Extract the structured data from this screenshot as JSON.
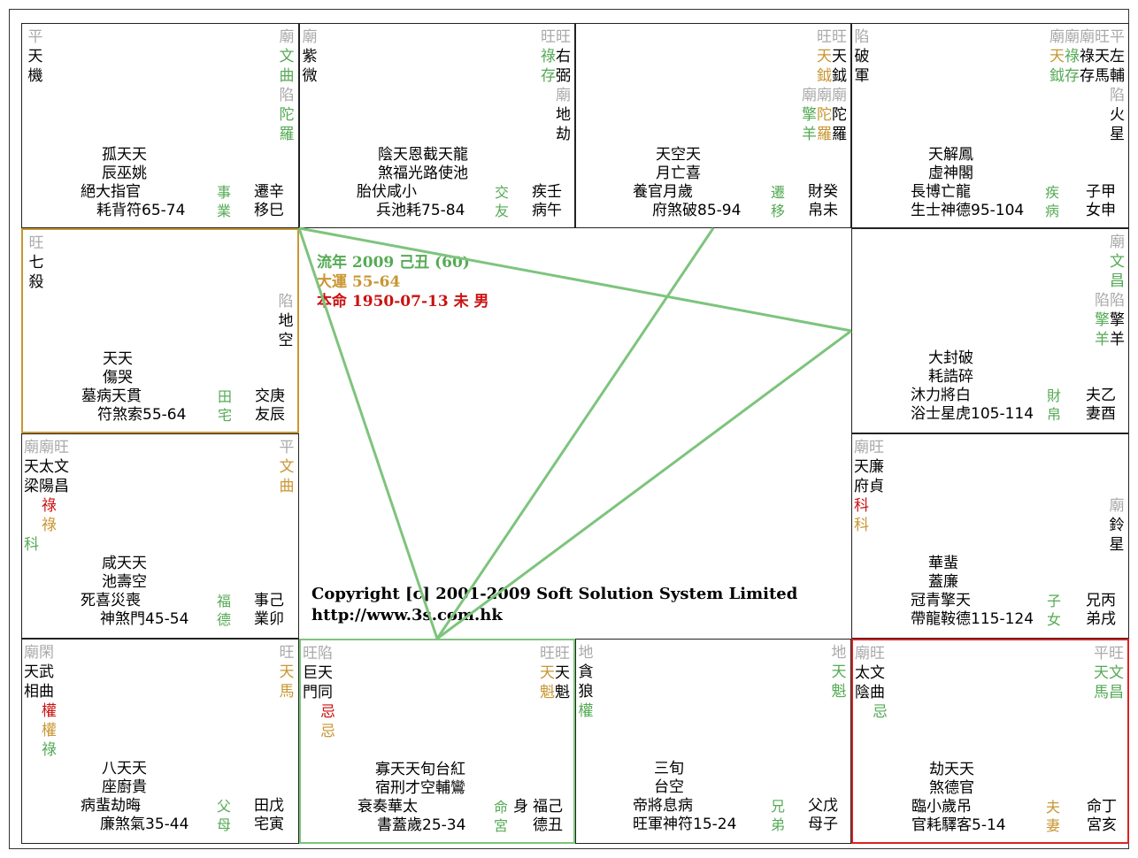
{
  "center": {
    "liunian": "流年 2009 己丑 (60)",
    "dayun": "大運 55-64",
    "benming": "本命  1950-07-13 未 男",
    "copyright": "Copyright [c] 2001-2009 Soft Solution System Limited",
    "url": "http://www.3s.com.hk"
  },
  "colors": {
    "green": "#7dc47d",
    "gold": "#c89632",
    "red": "#dd2222"
  },
  "cells": {
    "si": {
      "right_cols": [
        [
          "廟",
          "文",
          "曲",
          "陷",
          "陀",
          "羅"
        ]
      ],
      "left_cols": [
        [
          "平",
          "天",
          "機"
        ]
      ],
      "minor": [
        "孤天天",
        "辰巫姚",
        "絕大指官",
        "耗背符65-74"
      ],
      "palace_col": [
        "事",
        "業"
      ],
      "palace_color": "#55aa55",
      "gz": [
        "遷辛",
        "移巳"
      ]
    },
    "wu": {
      "left_cols": [
        [
          "廟",
          "紫",
          "微"
        ]
      ],
      "right_cols": [
        [
          "旺旺",
          "祿右",
          "存弼",
          "廟",
          "地",
          "劫"
        ]
      ],
      "minor": [
        "陰天恩截天龍",
        "煞福光路使池",
        "胎伏咸小",
        "兵池耗75-84"
      ],
      "palace_col": [
        "交",
        "友"
      ],
      "palace_color": "#55aa55",
      "gz": [
        "疾壬",
        "病午"
      ]
    },
    "wei": {
      "right_cols": [
        [
          "旺旺",
          "天天",
          "鉞鉞",
          "廟廟廟",
          "擎陀陀",
          "羊羅羅"
        ]
      ],
      "minor": [
        "天空天",
        "月亡喜",
        "養官月歲",
        "府煞破85-94"
      ],
      "palace_col": [
        "遷",
        "移"
      ],
      "palace_color": "#55aa55",
      "gz": [
        "財癸",
        "帛未"
      ]
    },
    "shen": {
      "left_cols": [
        [
          "陷",
          "破",
          "軍"
        ]
      ],
      "right_cols": [
        [
          "廟廟廟旺平",
          "天祿祿天左",
          "鉞存存馬輔",
          "陷",
          "火",
          "星"
        ]
      ],
      "minor": [
        "天解鳳",
        "虛神閣",
        "長博亡龍",
        "生士神德95-104"
      ],
      "palace_col": [
        "疾",
        "病"
      ],
      "palace_color": "#55aa55",
      "gz": [
        "子甲",
        "女申"
      ]
    },
    "chen": {
      "left_cols": [
        [
          "旺",
          "七",
          "殺"
        ]
      ],
      "right_cols": [
        [
          "陷",
          "地",
          "空"
        ]
      ],
      "minor": [
        "天天",
        "傷哭",
        "墓病天貫",
        "符煞索55-64"
      ],
      "palace_col": [
        "田",
        "宅"
      ],
      "palace_color": "#55aa55",
      "gz": [
        "交庚",
        "友辰"
      ]
    },
    "you": {
      "right_cols": [
        [
          "廟",
          "文",
          "昌",
          "陷陷",
          "擎擎",
          "羊羊"
        ]
      ],
      "minor": [
        "大封破",
        "耗誥碎",
        "沐力將白",
        "浴士星虎105-114"
      ],
      "palace_col": [
        "財",
        "帛"
      ],
      "palace_color": "#55aa55",
      "gz": [
        "夫乙",
        "妻酉"
      ]
    },
    "mao": {
      "left_cols": [
        [
          "廟廟旺",
          "天太文",
          "梁陽昌",
          "祿",
          "祿",
          "科"
        ]
      ],
      "right_cols": [
        [
          "平",
          "文",
          "曲"
        ]
      ],
      "minor": [
        "咸天天",
        "池壽空",
        "死喜災喪",
        "神煞門45-54"
      ],
      "palace_col": [
        "福",
        "德"
      ],
      "palace_color": "#55aa55",
      "gz": [
        "事己",
        "業卯"
      ]
    },
    "xu": {
      "left_cols": [
        [
          "廟旺",
          "天廉",
          "府貞",
          "科",
          "科"
        ]
      ],
      "right_cols": [
        [
          "廟",
          "鈴",
          "星"
        ]
      ],
      "minor": [
        "華蜚",
        "蓋廉",
        "冠青擎天",
        "帶龍鞍德115-124"
      ],
      "palace_col": [
        "子",
        "女"
      ],
      "palace_color": "#55aa55",
      "gz": [
        "兄丙",
        "弟戌"
      ]
    },
    "yin": {
      "left_cols": [
        [
          "廟閑",
          "天武",
          "相曲",
          "權",
          "權",
          "祿"
        ]
      ],
      "right_cols": [
        [
          "旺",
          "天",
          "馬"
        ]
      ],
      "minor": [
        "八天天",
        "座廚貴",
        "病蜚劫晦",
        "廉煞氣35-44"
      ],
      "palace_col": [
        "父",
        "母"
      ],
      "palace_color": "#55aa55",
      "gz": [
        "田戊",
        "宅寅"
      ]
    },
    "chou": {
      "left_cols": [
        [
          "旺陷",
          "巨天",
          "門同",
          "忌",
          "忌"
        ]
      ],
      "right_cols": [
        [
          "旺旺",
          "天天",
          "魁魁"
        ]
      ],
      "minor": [
        "寡天天旬台紅",
        "宿刑才空輔鸞",
        "衰奏華太",
        "書蓋歲25-34"
      ],
      "palace_col": [
        "命",
        "宮"
      ],
      "palace_color": "#55aa55",
      "shen_col": [
        "身"
      ],
      "gz": [
        "福己",
        "德丑"
      ]
    },
    "zi": {
      "left_cols": [
        [
          "地",
          "貪",
          "狼",
          "",
          "",
          "權"
        ]
      ],
      "right_cols": [
        [
          "地",
          "天",
          "魁"
        ]
      ],
      "minor": [
        "三旬",
        "台空",
        "帝將息病",
        "旺軍神符15-24"
      ],
      "palace_col": [
        "兄",
        "弟"
      ],
      "palace_color": "#55aa55",
      "gz": [
        "父戊",
        "母子"
      ]
    },
    "hai": {
      "left_cols": [
        [
          "廟旺",
          "太文",
          "陰曲",
          "",
          "",
          "忌"
        ]
      ],
      "right_cols": [
        [
          "平旺",
          "天文",
          "馬昌"
        ]
      ],
      "minor": [
        "劫天天",
        "煞德官",
        "臨小歲吊",
        "官耗驛客5-14"
      ],
      "palace_col": [
        "夫",
        "妻"
      ],
      "palace_color": "#c89632",
      "gz": [
        "命丁",
        "宮亥"
      ]
    }
  }
}
